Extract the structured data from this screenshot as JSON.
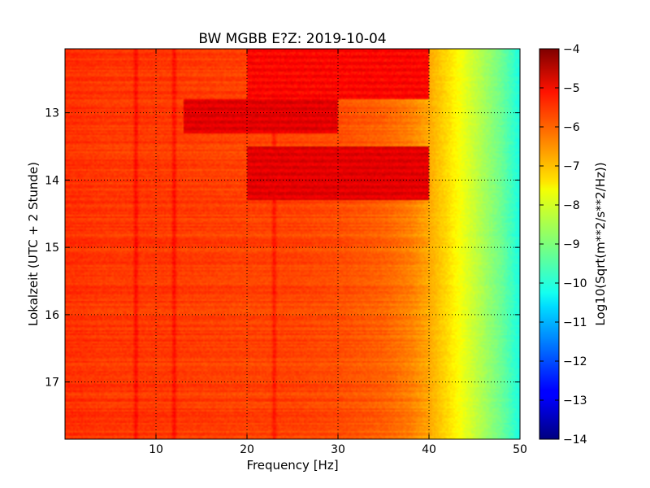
{
  "chart_data": {
    "type": "heatmap",
    "title": "BW MGBB E?Z: 2019-10-04",
    "xlabel": "Frequency [Hz]",
    "ylabel": "Lokalzeit (UTC + 2 Stunde)",
    "xlim": [
      0,
      50
    ],
    "ylim": [
      12.05,
      17.85
    ],
    "y_inverted": true,
    "grid": true,
    "x_ticks": [
      10,
      20,
      30,
      40,
      50
    ],
    "x_tick_labels": [
      "10",
      "20",
      "30",
      "40",
      "50"
    ],
    "y_ticks": [
      13,
      14,
      15,
      16,
      17
    ],
    "y_tick_labels": [
      "13",
      "14",
      "15",
      "16",
      "17"
    ],
    "colormap": "jet",
    "colorbar": {
      "label": "Log10(Sqrt(m**2/s**2/Hz))",
      "range": [
        -14,
        -4
      ],
      "ticks": [
        -4,
        -5,
        -6,
        -7,
        -8,
        -9,
        -10,
        -11,
        -12,
        -13,
        -14
      ],
      "tick_labels": [
        "−4",
        "−5",
        "−6",
        "−7",
        "−8",
        "−9",
        "−10",
        "−11",
        "−12",
        "−13",
        "−14"
      ]
    },
    "spectrum_profile": {
      "frequency_hz": [
        0,
        5,
        10,
        20,
        25,
        30,
        35,
        38,
        40,
        42,
        44,
        46,
        48,
        50
      ],
      "value": [
        -5.7,
        -5.8,
        -5.8,
        -5.9,
        -5.9,
        -6.0,
        -6.2,
        -6.5,
        -6.9,
        -7.4,
        -8.0,
        -8.6,
        -9.2,
        -10.0
      ]
    },
    "spectral_lines_hz": [
      7.8,
      12.0,
      23.0
    ],
    "energetic_bands": [
      {
        "start": 12.05,
        "end": 12.8,
        "freq_range": [
          20,
          40
        ],
        "value": -5.3
      },
      {
        "start": 12.8,
        "end": 13.3,
        "freq_range": [
          13,
          30
        ],
        "value": -5.0
      },
      {
        "start": 13.5,
        "end": 14.3,
        "freq_range": [
          20,
          40
        ],
        "value": -5.0
      }
    ]
  }
}
